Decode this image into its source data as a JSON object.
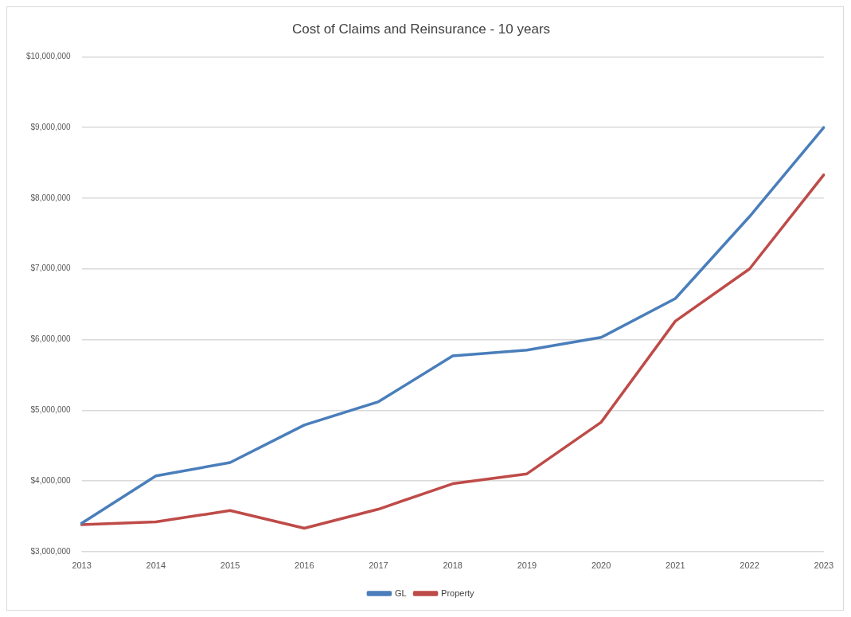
{
  "chart_data": {
    "type": "line",
    "title": "Cost of Claims and Reinsurance - 10 years",
    "categories": [
      "2013",
      "2014",
      "2015",
      "2016",
      "2017",
      "2018",
      "2019",
      "2020",
      "2021",
      "2022",
      "2023"
    ],
    "series": [
      {
        "name": "GL",
        "color": "#4a7ebb",
        "values": [
          3400000,
          4070000,
          4260000,
          4790000,
          5120000,
          5770000,
          5850000,
          6030000,
          6580000,
          7740000,
          9000000
        ]
      },
      {
        "name": "Property",
        "color": "#be4b48",
        "values": [
          3380000,
          3420000,
          3580000,
          3330000,
          3600000,
          3960000,
          4100000,
          4830000,
          6260000,
          7000000,
          8330000
        ]
      }
    ],
    "ylim": [
      3000000,
      10000000
    ],
    "yticks": [
      {
        "value": 3000000,
        "label": "$3,000,000"
      },
      {
        "value": 4000000,
        "label": "$4,000,000"
      },
      {
        "value": 5000000,
        "label": "$5,000,000"
      },
      {
        "value": 6000000,
        "label": "$6,000,000"
      },
      {
        "value": 7000000,
        "label": "$7,000,000"
      },
      {
        "value": 8000000,
        "label": "$8,000,000"
      },
      {
        "value": 9000000,
        "label": "$9,000,000"
      },
      {
        "value": 10000000,
        "label": "$10,000,000"
      }
    ],
    "grid": "y",
    "legend": "bottom",
    "marker": "none",
    "line_style": "solid"
  }
}
